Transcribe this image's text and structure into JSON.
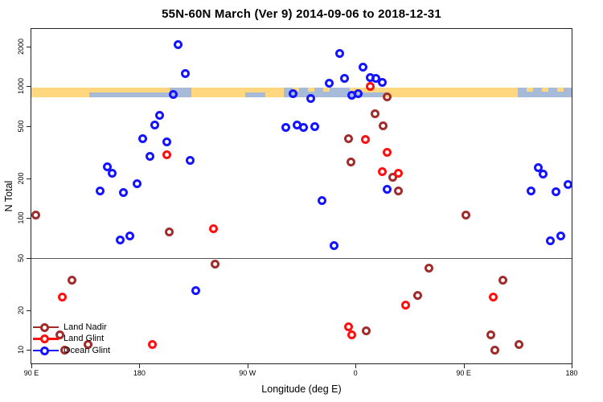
{
  "colors": {
    "land_nadir": "#A12C2C",
    "land_glint": "#FF1010",
    "ocean_glint": "#1414FF",
    "band_land": "#FFD77E",
    "band_ocean": "#A7BAD8",
    "axis": "#222222",
    "reference_line": "#555555"
  },
  "legend": {
    "items": [
      {
        "label": "Land Nadir",
        "color_key": "land_nadir"
      },
      {
        "label": "Land Glint",
        "color_key": "land_glint"
      },
      {
        "label": "Ocean Glint",
        "color_key": "ocean_glint"
      }
    ]
  },
  "chart_data": {
    "type": "scatter",
    "title": "55N-60N March (Ver 9)   2014-09-06 to 2018-12-31",
    "xlabel": "Longitude (deg E)",
    "ylabel": "N Total",
    "x_axis": {
      "range": [
        90,
        540
      ],
      "note": "longitude axis wraps eastward: 90E,180,90W,0,90E,180",
      "ticks": [
        {
          "value": 90,
          "label": "90 E"
        },
        {
          "value": 180,
          "label": "180"
        },
        {
          "value": 270,
          "label": "90 W"
        },
        {
          "value": 360,
          "label": "0"
        },
        {
          "value": 450,
          "label": "90 E"
        },
        {
          "value": 540,
          "label": "180"
        }
      ]
    },
    "y_axis": {
      "scale": "log",
      "limits": [
        7.9,
        2720
      ],
      "ticks": [
        {
          "value": 10,
          "label": "10"
        },
        {
          "value": 20,
          "label": "20"
        },
        {
          "value": 50,
          "label": "50"
        },
        {
          "value": 100,
          "label": "100"
        },
        {
          "value": 200,
          "label": "200"
        },
        {
          "value": 500,
          "label": "500"
        },
        {
          "value": 1000,
          "label": "1000"
        },
        {
          "value": 2000,
          "label": "2000"
        }
      ]
    },
    "reference_line_y": 50,
    "map_band": {
      "n_top": 975,
      "n_bottom": 830,
      "segments": [
        {
          "from_lon": 90,
          "to_lon": 138,
          "surface": "land"
        },
        {
          "from_lon": 138,
          "to_lon": 205,
          "surface": "mixed"
        },
        {
          "from_lon": 205,
          "to_lon": 223,
          "surface": "ocean"
        },
        {
          "from_lon": 223,
          "to_lon": 268,
          "surface": "land"
        },
        {
          "from_lon": 268,
          "to_lon": 285,
          "surface": "mixed"
        },
        {
          "from_lon": 285,
          "to_lon": 300,
          "surface": "land"
        },
        {
          "from_lon": 300,
          "to_lon": 340,
          "surface": "ocean_spots"
        },
        {
          "from_lon": 340,
          "to_lon": 355,
          "surface": "ocean"
        },
        {
          "from_lon": 355,
          "to_lon": 385,
          "surface": "mixed"
        },
        {
          "from_lon": 385,
          "to_lon": 495,
          "surface": "land"
        },
        {
          "from_lon": 495,
          "to_lon": 540,
          "surface": "ocean_spots"
        }
      ]
    },
    "series": [
      {
        "name": "Land Nadir",
        "color_key": "land_nadir",
        "points": [
          [
            94,
            105
          ],
          [
            386,
            835
          ],
          [
            376,
            615
          ],
          [
            383,
            500
          ],
          [
            354,
            400
          ],
          [
            356,
            265
          ],
          [
            391,
            205
          ],
          [
            396,
            160
          ],
          [
            452,
            105
          ],
          [
            205,
            79
          ],
          [
            243,
            45
          ],
          [
            421,
            42
          ],
          [
            124,
            34
          ],
          [
            483,
            34
          ],
          [
            412,
            26
          ],
          [
            369,
            14
          ],
          [
            114,
            13
          ],
          [
            473,
            13
          ],
          [
            137,
            11
          ],
          [
            496,
            11
          ],
          [
            476,
            10
          ],
          [
            118,
            10
          ]
        ]
      },
      {
        "name": "Land Glint",
        "color_key": "land_glint",
        "points": [
          [
            203,
            300
          ],
          [
            372,
            1000
          ],
          [
            368,
            395
          ],
          [
            386,
            315
          ],
          [
            382,
            225
          ],
          [
            396,
            220
          ],
          [
            242,
            83
          ],
          [
            116,
            25
          ],
          [
            475,
            25
          ],
          [
            402,
            22
          ],
          [
            354,
            15
          ],
          [
            357,
            13
          ],
          [
            191,
            11
          ]
        ]
      },
      {
        "name": "Ocean Glint",
        "color_key": "ocean_glint",
        "points": [
          [
            212,
            2080
          ],
          [
            218,
            1240
          ],
          [
            208,
            870
          ],
          [
            197,
            600
          ],
          [
            193,
            510
          ],
          [
            183,
            400
          ],
          [
            203,
            380
          ],
          [
            189,
            295
          ],
          [
            222,
            275
          ],
          [
            153,
            246
          ],
          [
            157,
            220
          ],
          [
            178,
            181
          ],
          [
            147,
            161
          ],
          [
            167,
            156
          ],
          [
            164,
            68
          ],
          [
            172,
            73
          ],
          [
            227,
            28
          ],
          [
            347,
            1780
          ],
          [
            366,
            1400
          ],
          [
            372,
            1170
          ],
          [
            377,
            1150
          ],
          [
            351,
            1150
          ],
          [
            382,
            1070
          ],
          [
            338,
            1060
          ],
          [
            308,
            883
          ],
          [
            362,
            880
          ],
          [
            357,
            850
          ],
          [
            323,
            805
          ],
          [
            311,
            510
          ],
          [
            326,
            495
          ],
          [
            317,
            490
          ],
          [
            302,
            485
          ],
          [
            386,
            165
          ],
          [
            332,
            136
          ],
          [
            342,
            62
          ],
          [
            512,
            242
          ],
          [
            516,
            215
          ],
          [
            537,
            180
          ],
          [
            506,
            160
          ],
          [
            527,
            159
          ],
          [
            531,
            73
          ],
          [
            522,
            67
          ]
        ]
      }
    ]
  }
}
